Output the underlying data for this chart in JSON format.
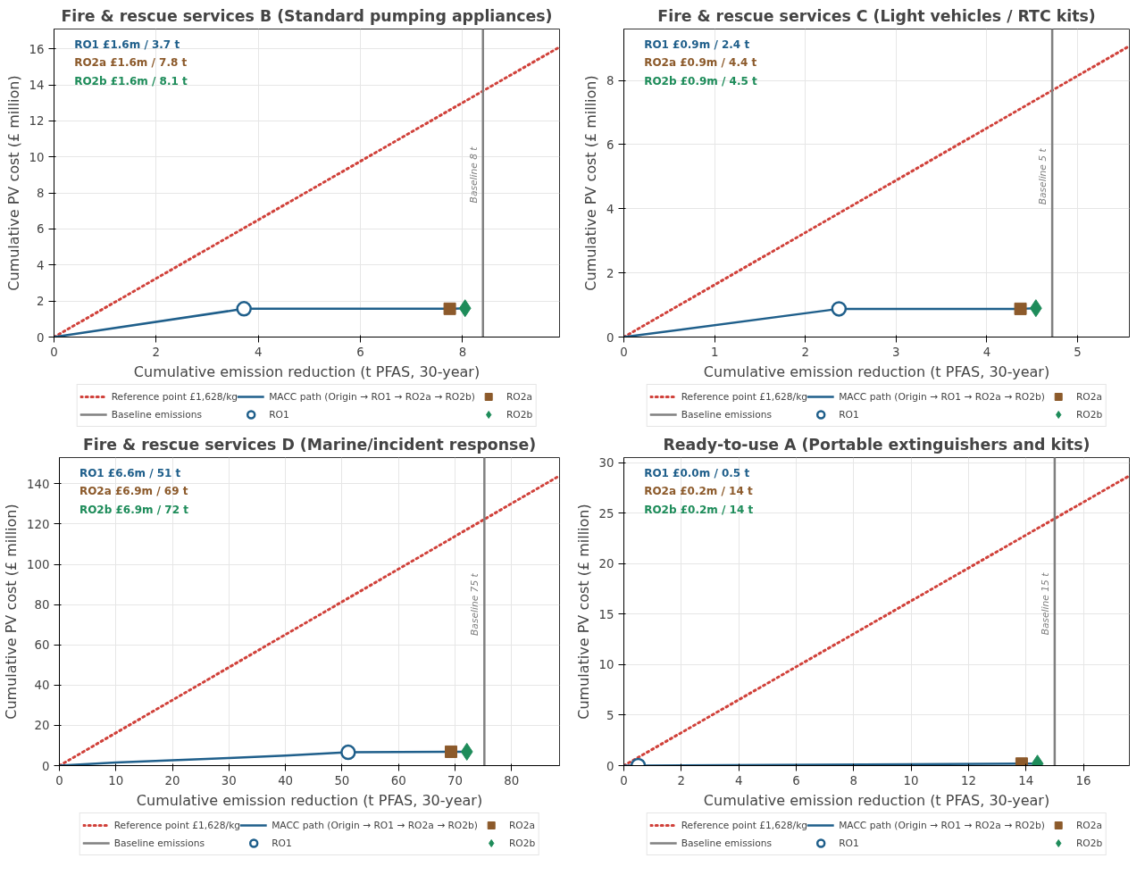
{
  "chart_data": [
    {
      "type": "line",
      "title": "Fire & rescue services B (Standard pumping appliances)",
      "xlabel": "Cumulative emission reduction (t PFAS, 30-year)",
      "ylabel": "Cumulative PV cost (£ million)",
      "xlim": [
        0,
        9.9
      ],
      "ylim": [
        0,
        17.1
      ],
      "xticks": [
        0,
        2,
        4,
        6,
        8
      ],
      "yticks": [
        0,
        2,
        4,
        6,
        8,
        10,
        12,
        14,
        16
      ],
      "grid": true,
      "legend": "bottom",
      "series": [
        {
          "name": "Reference point £1,628/kg",
          "type": "line",
          "line_style": "dotted",
          "color": "#d0413a",
          "x": [
            0,
            9.9
          ],
          "values": [
            0,
            16.1
          ]
        },
        {
          "name": "Baseline emissions",
          "type": "line",
          "line_style": "solid",
          "color": "#808080",
          "x": [
            8.4,
            8.4
          ],
          "values": [
            0,
            17.1
          ]
        },
        {
          "name": "MACC path (Origin → RO1 → RO2a → RO2b)",
          "type": "line",
          "line_style": "solid",
          "color": "#1f5f8b",
          "x": [
            0,
            3.72,
            7.75,
            8.05
          ],
          "values": [
            0,
            1.57,
            1.57,
            1.6
          ]
        },
        {
          "name": "RO1",
          "type": "scatter",
          "marker": "circle",
          "color": "#1f5f8b",
          "x": [
            3.72
          ],
          "values": [
            1.57
          ]
        },
        {
          "name": "RO2a",
          "type": "scatter",
          "marker": "square",
          "color": "#8c5a2b",
          "x": [
            7.75
          ],
          "values": [
            1.57
          ]
        },
        {
          "name": "RO2b",
          "type": "scatter",
          "marker": "diamond",
          "color": "#1e8c5a",
          "x": [
            8.05
          ],
          "values": [
            1.6
          ]
        }
      ],
      "annotations": [
        "RO1   £1.6m / 3.7 t",
        "RO2a  £1.6m / 7.8 t",
        "RO2b  £1.6m / 8.1 t",
        {
          "text": "Baseline 8 t",
          "x": 8.4,
          "y": 9
        }
      ]
    },
    {
      "type": "line",
      "title": "Fire & rescue services C (Light vehicles / RTC kits)",
      "xlabel": "Cumulative emission reduction (t PFAS, 30-year)",
      "ylabel": "Cumulative PV cost (£ million)",
      "xlim": [
        0,
        5.57
      ],
      "ylim": [
        0,
        9.6
      ],
      "xticks": [
        0,
        1,
        2,
        3,
        4,
        5
      ],
      "yticks": [
        0,
        2,
        4,
        6,
        8
      ],
      "grid": true,
      "legend": "bottom",
      "series": [
        {
          "name": "Reference point £1,628/kg",
          "type": "line",
          "line_style": "dotted",
          "color": "#d0413a",
          "x": [
            0,
            5.57
          ],
          "values": [
            0,
            9.07
          ]
        },
        {
          "name": "Baseline emissions",
          "type": "line",
          "line_style": "solid",
          "color": "#808080",
          "x": [
            4.72,
            4.72
          ],
          "values": [
            0,
            9.6
          ]
        },
        {
          "name": "MACC path (Origin → RO1 → RO2a → RO2b)",
          "type": "line",
          "line_style": "solid",
          "color": "#1f5f8b",
          "x": [
            0,
            2.37,
            4.37,
            4.54
          ],
          "values": [
            0,
            0.88,
            0.88,
            0.9
          ]
        },
        {
          "name": "RO1",
          "type": "scatter",
          "marker": "circle",
          "color": "#1f5f8b",
          "x": [
            2.37
          ],
          "values": [
            0.88
          ]
        },
        {
          "name": "RO2a",
          "type": "scatter",
          "marker": "square",
          "color": "#8c5a2b",
          "x": [
            4.37
          ],
          "values": [
            0.88
          ]
        },
        {
          "name": "RO2b",
          "type": "scatter",
          "marker": "diamond",
          "color": "#1e8c5a",
          "x": [
            4.54
          ],
          "values": [
            0.9
          ]
        }
      ],
      "annotations": [
        "RO1   £0.9m / 2.4 t",
        "RO2a  £0.9m / 4.4 t",
        "RO2b  £0.9m / 4.5 t",
        {
          "text": "Baseline 5 t",
          "x": 4.72,
          "y": 5
        }
      ]
    },
    {
      "type": "line",
      "title": "Fire & rescue services D (Marine/incident response)",
      "xlabel": "Cumulative emission reduction (t PFAS, 30-year)",
      "ylabel": "Cumulative PV cost (£ million)",
      "xlim": [
        0,
        88.5
      ],
      "ylim": [
        0,
        153
      ],
      "xticks": [
        0,
        10,
        20,
        30,
        40,
        50,
        60,
        70,
        80
      ],
      "yticks": [
        0,
        20,
        40,
        60,
        80,
        100,
        120,
        140
      ],
      "grid": true,
      "legend": "bottom",
      "series": [
        {
          "name": "Reference point £1,628/kg",
          "type": "line",
          "line_style": "dotted",
          "color": "#d0413a",
          "x": [
            0,
            88.5
          ],
          "values": [
            0,
            144
          ]
        },
        {
          "name": "Baseline emissions",
          "type": "line",
          "line_style": "solid",
          "color": "#808080",
          "x": [
            75.2,
            75.2
          ],
          "values": [
            0,
            153
          ]
        },
        {
          "name": "MACC path (Origin → RO1 → RO2a → RO2b)",
          "type": "line",
          "line_style": "solid",
          "color": "#1f5f8b",
          "x": [
            0,
            10,
            20,
            30,
            40,
            51.1,
            60,
            69.3,
            72.1
          ],
          "values": [
            0,
            1.5,
            2.7,
            3.8,
            5.0,
            6.6,
            6.8,
            6.9,
            6.9
          ]
        },
        {
          "name": "RO1",
          "type": "scatter",
          "marker": "circle",
          "color": "#1f5f8b",
          "x": [
            51.1
          ],
          "values": [
            6.6
          ]
        },
        {
          "name": "RO2a",
          "type": "scatter",
          "marker": "square",
          "color": "#8c5a2b",
          "x": [
            69.3
          ],
          "values": [
            6.9
          ]
        },
        {
          "name": "RO2b",
          "type": "scatter",
          "marker": "diamond",
          "color": "#1e8c5a",
          "x": [
            72.1
          ],
          "values": [
            6.9
          ]
        }
      ],
      "annotations": [
        "RO1   £6.6m / 51 t",
        "RO2a  £6.9m / 69 t",
        "RO2b  £6.9m / 72 t",
        {
          "text": "Baseline 75 t",
          "x": 75.2,
          "y": 80
        }
      ]
    },
    {
      "type": "line",
      "title": "Ready-to-use A (Portable extinguishers and kits)",
      "xlabel": "Cumulative emission reduction (t PFAS, 30-year)",
      "ylabel": "Cumulative PV cost (£ million)",
      "xlim": [
        0,
        17.6
      ],
      "ylim": [
        0,
        30.5
      ],
      "xticks": [
        0,
        2,
        4,
        6,
        8,
        10,
        12,
        14,
        16
      ],
      "yticks": [
        0,
        5,
        10,
        15,
        20,
        25,
        30
      ],
      "grid": true,
      "legend": "bottom",
      "series": [
        {
          "name": "Reference point £1,628/kg",
          "type": "line",
          "line_style": "dotted",
          "color": "#d0413a",
          "x": [
            0,
            17.6
          ],
          "values": [
            0,
            28.7
          ]
        },
        {
          "name": "Baseline emissions",
          "type": "line",
          "line_style": "solid",
          "color": "#808080",
          "x": [
            15,
            15
          ],
          "values": [
            0,
            30.5
          ]
        },
        {
          "name": "MACC path (Origin → RO1 → RO2a → RO2b)",
          "type": "line",
          "line_style": "solid",
          "color": "#1f5f8b",
          "x": [
            0,
            0.5,
            13.85,
            14.4
          ],
          "values": [
            0,
            0.0,
            0.2,
            0.2
          ]
        },
        {
          "name": "RO1",
          "type": "scatter",
          "marker": "circle",
          "color": "#1f5f8b",
          "x": [
            0.5
          ],
          "values": [
            0.0
          ]
        },
        {
          "name": "RO2a",
          "type": "scatter",
          "marker": "square",
          "color": "#8c5a2b",
          "x": [
            13.85
          ],
          "values": [
            0.2
          ]
        },
        {
          "name": "RO2b",
          "type": "scatter",
          "marker": "diamond",
          "color": "#1e8c5a",
          "x": [
            14.4
          ],
          "values": [
            0.2
          ]
        }
      ],
      "annotations": [
        "RO1   £0.0m / 0.5 t",
        "RO2a  £0.2m / 14 t",
        "RO2b  £0.2m / 14 t",
        {
          "text": "Baseline 15 t",
          "x": 15,
          "y": 16
        }
      ]
    }
  ]
}
